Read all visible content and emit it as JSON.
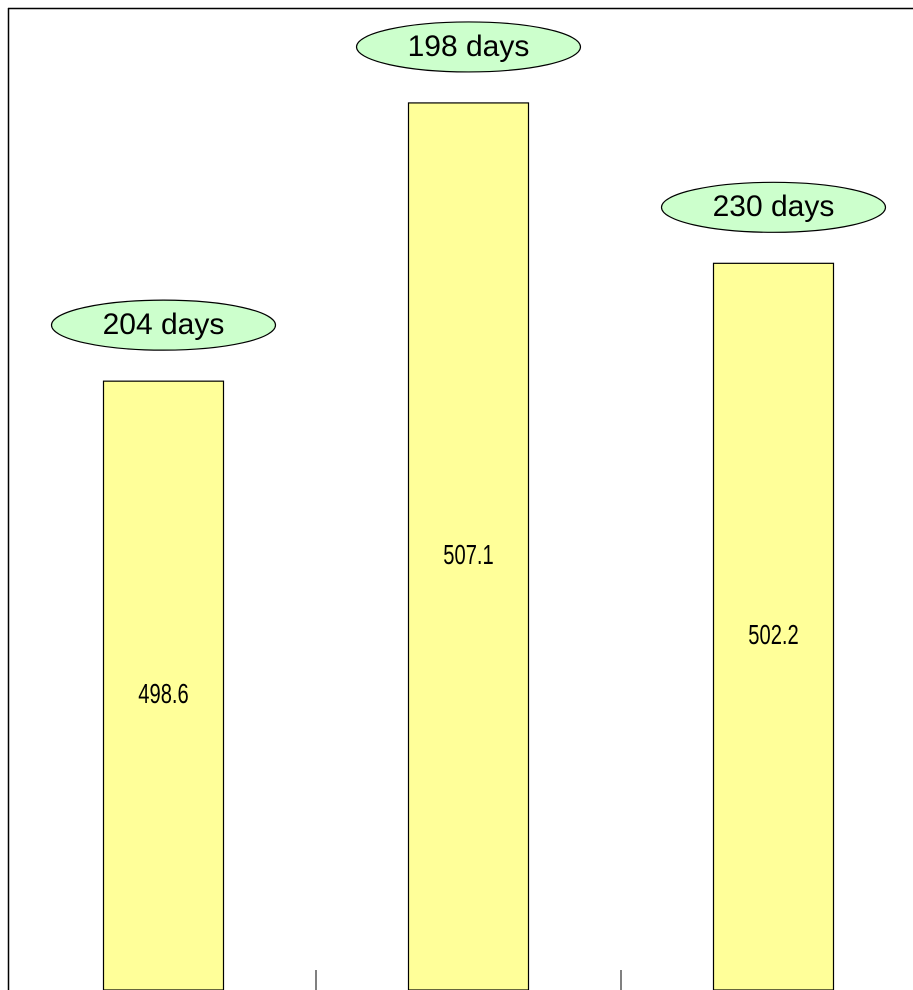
{
  "chart_data": {
    "type": "bar",
    "categories": [
      null,
      null,
      null
    ],
    "values": [
      498.6,
      507.1,
      502.2
    ],
    "annotations": [
      "204 days",
      "198 days",
      "230 days"
    ],
    "color": "#ffff99",
    "annotation_color": "#ccffcc",
    "ylim": [
      480,
      510
    ]
  }
}
